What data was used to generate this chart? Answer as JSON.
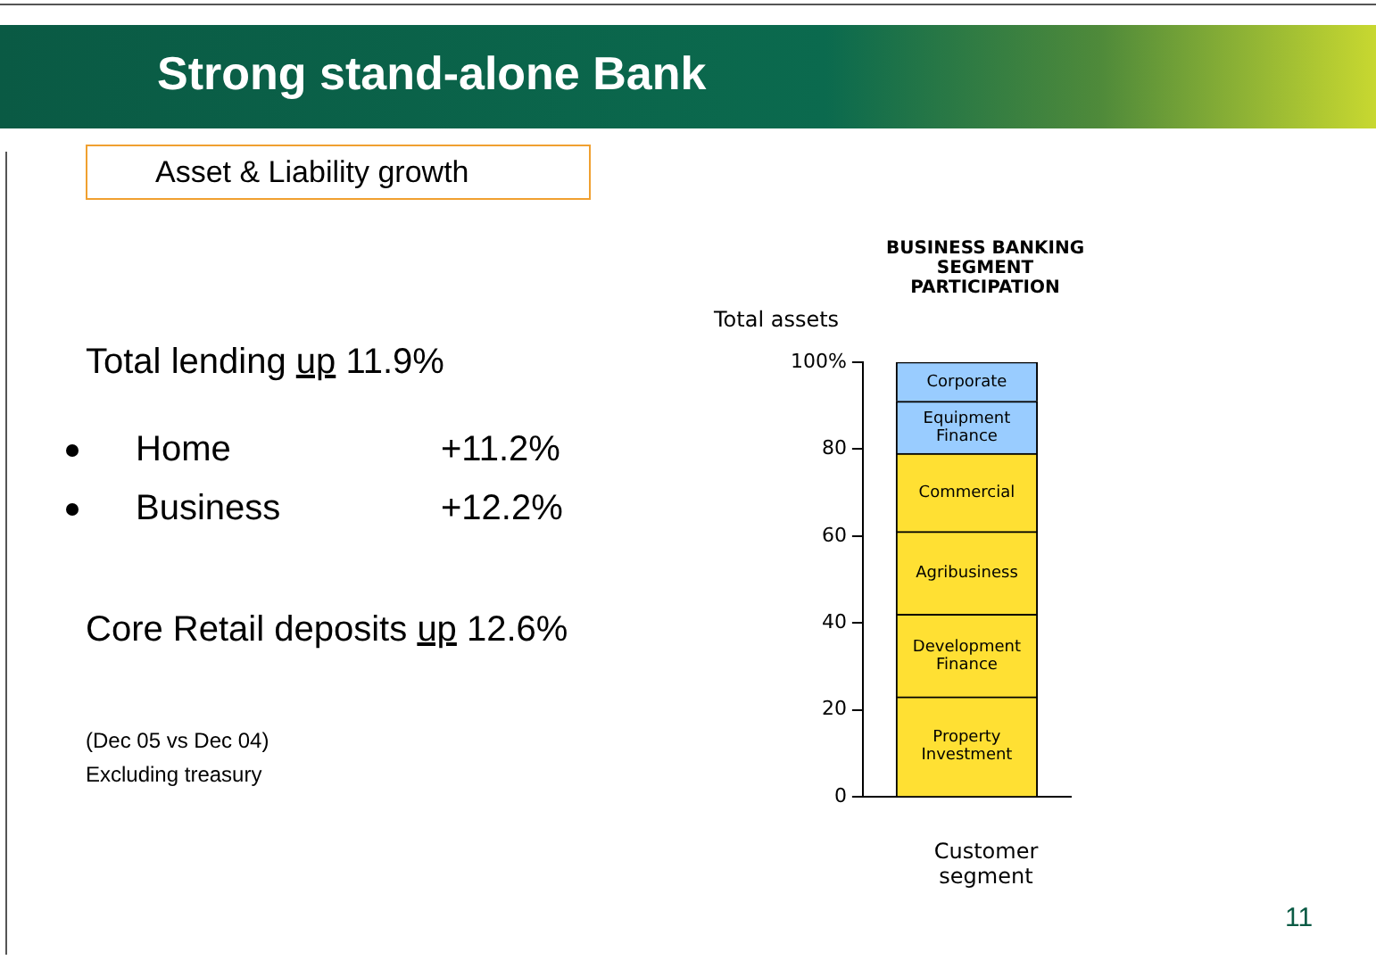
{
  "chart_data": {
    "type": "bar",
    "title": "Strong stand-alone Bank",
    "subtitle": "BUSINESS BANKING SEGMENT PARTICIPATION",
    "ylabel": "Total assets",
    "xlabel": "Customer segment",
    "categories": [
      null
    ],
    "stacked": true,
    "series": [
      {
        "name": "Property Investment",
        "color": "#ffe033",
        "values": [
          23
        ]
      },
      {
        "name": "Development Finance",
        "color": "#ffe033",
        "values": [
          19
        ]
      },
      {
        "name": "Agribusiness",
        "color": "#ffe033",
        "values": [
          19
        ]
      },
      {
        "name": "Commercial",
        "color": "#ffe033",
        "values": [
          18
        ]
      },
      {
        "name": "Equipment Finance",
        "color": "#99ccff",
        "values": [
          12
        ]
      },
      {
        "name": "Corporate",
        "color": "#99ccff",
        "values": [
          9
        ]
      }
    ],
    "ylim": [
      0,
      100
    ],
    "yticks": [
      0,
      20,
      40,
      60,
      80,
      {
        "value": 100,
        "label": "100%"
      }
    ],
    "legend": false,
    "annotations": [
      "Asset & Liability growth",
      "Total lending up 11.9%",
      "Home",
      "+11.2%",
      "Business",
      "+12.2%",
      "Core Retail deposits up 12.6%",
      "(Dec 05 vs Dec 04)",
      "Excluding treasury",
      "11"
    ]
  }
}
